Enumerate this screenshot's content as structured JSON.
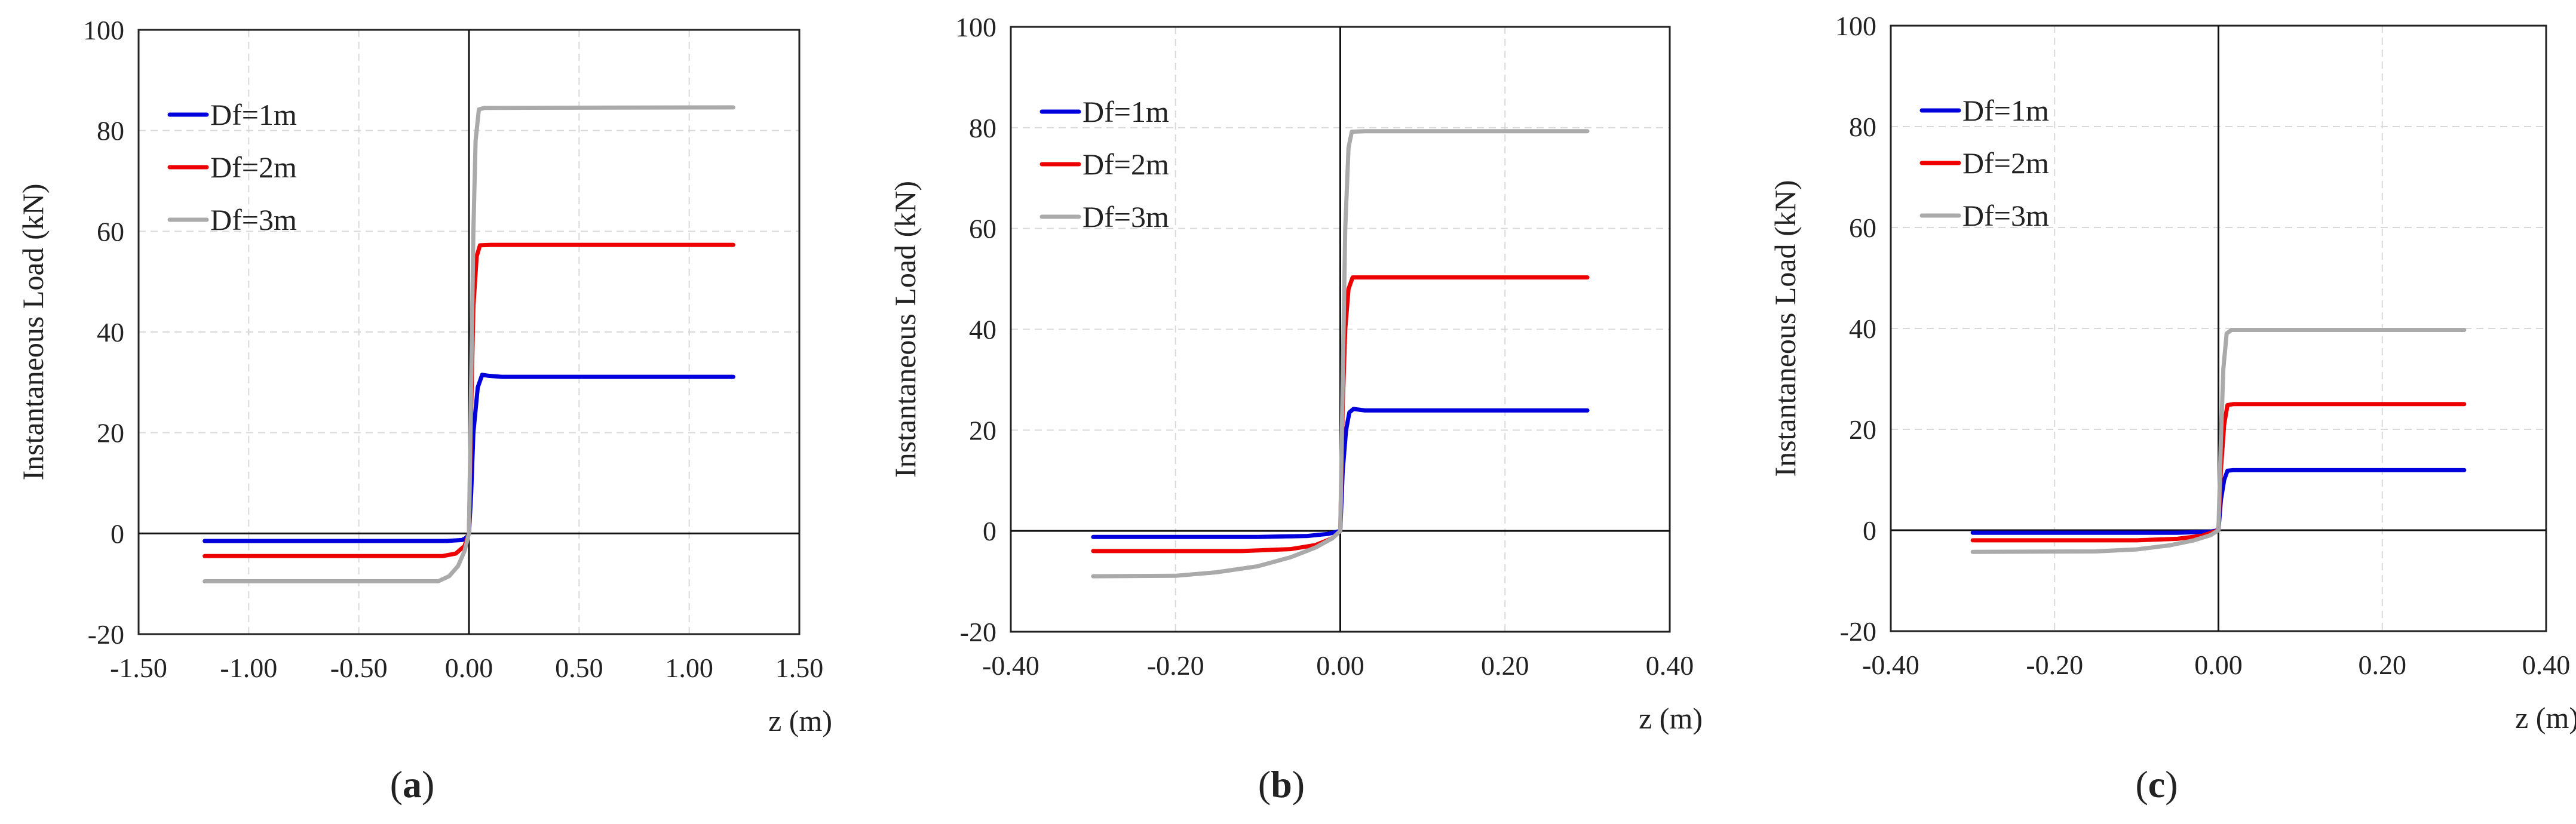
{
  "chart_data": [
    {
      "type": "line",
      "panel_label": "a",
      "xlabel": "z (m)",
      "ylabel": "Instantaneous Load (kN)",
      "xlim": [
        -1.5,
        1.5
      ],
      "ylim": [
        -20,
        100
      ],
      "xticks": [
        -1.5,
        -1.0,
        -0.5,
        0.0,
        0.5,
        1.0,
        1.5
      ],
      "xtick_labels": [
        "-1.50",
        "-1.00",
        "-0.50",
        "0.00",
        "0.50",
        "1.00",
        "1.50"
      ],
      "yticks": [
        -20,
        0,
        20,
        40,
        60,
        80,
        100
      ],
      "ytick_labels": [
        "-20",
        "0",
        "20",
        "40",
        "60",
        "80",
        "100"
      ],
      "grid": true,
      "legend_position": "top-left",
      "series": [
        {
          "name": "Df=1m",
          "color": "#0000dd",
          "points": [
            [
              -1.2,
              -1.5
            ],
            [
              -0.1,
              -1.5
            ],
            [
              -0.03,
              -1.3
            ],
            [
              -0.01,
              -0.8
            ],
            [
              0.0,
              0.0
            ],
            [
              0.01,
              8
            ],
            [
              0.02,
              20
            ],
            [
              0.04,
              29
            ],
            [
              0.06,
              31.5
            ],
            [
              0.09,
              31.3
            ],
            [
              0.15,
              31.1
            ],
            [
              1.2,
              31.1
            ]
          ]
        },
        {
          "name": "Df=2m",
          "color": "#ee0000",
          "points": [
            [
              -1.2,
              -4.5
            ],
            [
              -0.12,
              -4.5
            ],
            [
              -0.06,
              -4.0
            ],
            [
              -0.02,
              -2.5
            ],
            [
              0.0,
              0.0
            ],
            [
              0.01,
              25
            ],
            [
              0.02,
              45
            ],
            [
              0.035,
              55
            ],
            [
              0.05,
              57.2
            ],
            [
              0.1,
              57.3
            ],
            [
              1.2,
              57.3
            ]
          ]
        },
        {
          "name": "Df=3m",
          "color": "#aaaaaa",
          "points": [
            [
              -1.2,
              -9.5
            ],
            [
              -0.14,
              -9.5
            ],
            [
              -0.09,
              -8.5
            ],
            [
              -0.05,
              -6.5
            ],
            [
              -0.02,
              -3.5
            ],
            [
              0.0,
              0.0
            ],
            [
              0.01,
              30
            ],
            [
              0.02,
              60
            ],
            [
              0.03,
              78
            ],
            [
              0.045,
              84.2
            ],
            [
              0.07,
              84.5
            ],
            [
              1.2,
              84.6
            ]
          ]
        }
      ]
    },
    {
      "type": "line",
      "panel_label": "b",
      "xlabel": "z (m)",
      "ylabel": "Instantaneous Load (kN)",
      "xlim": [
        -0.4,
        0.4
      ],
      "ylim": [
        -20,
        100
      ],
      "xticks": [
        -0.4,
        -0.2,
        0.0,
        0.2,
        0.4
      ],
      "xtick_labels": [
        "-0.40",
        "-0.20",
        "0.00",
        "0.20",
        "0.40"
      ],
      "yticks": [
        -20,
        0,
        20,
        40,
        60,
        80,
        100
      ],
      "ytick_labels": [
        "-20",
        "0",
        "20",
        "40",
        "60",
        "80",
        "100"
      ],
      "grid": true,
      "legend_position": "top-left",
      "series": [
        {
          "name": "Df=1m",
          "color": "#0000dd",
          "points": [
            [
              -0.3,
              -1.2
            ],
            [
              -0.1,
              -1.2
            ],
            [
              -0.04,
              -1.0
            ],
            [
              -0.015,
              -0.6
            ],
            [
              0.0,
              0.0
            ],
            [
              0.003,
              12
            ],
            [
              0.007,
              20
            ],
            [
              0.011,
              23.5
            ],
            [
              0.016,
              24.2
            ],
            [
              0.03,
              23.9
            ],
            [
              0.3,
              23.9
            ]
          ]
        },
        {
          "name": "Df=2m",
          "color": "#ee0000",
          "points": [
            [
              -0.3,
              -4.0
            ],
            [
              -0.12,
              -4.0
            ],
            [
              -0.06,
              -3.6
            ],
            [
              -0.03,
              -2.8
            ],
            [
              -0.01,
              -1.5
            ],
            [
              0.0,
              0.0
            ],
            [
              0.003,
              25
            ],
            [
              0.006,
              40
            ],
            [
              0.01,
              48
            ],
            [
              0.015,
              50.3
            ],
            [
              0.03,
              50.3
            ],
            [
              0.3,
              50.3
            ]
          ]
        },
        {
          "name": "Df=3m",
          "color": "#aaaaaa",
          "points": [
            [
              -0.3,
              -9.0
            ],
            [
              -0.2,
              -8.9
            ],
            [
              -0.15,
              -8.2
            ],
            [
              -0.1,
              -7.0
            ],
            [
              -0.06,
              -5.2
            ],
            [
              -0.03,
              -3.3
            ],
            [
              -0.01,
              -1.5
            ],
            [
              0.0,
              0.0
            ],
            [
              0.003,
              30
            ],
            [
              0.006,
              60
            ],
            [
              0.01,
              76
            ],
            [
              0.014,
              79.2
            ],
            [
              0.03,
              79.3
            ],
            [
              0.3,
              79.3
            ]
          ]
        }
      ]
    },
    {
      "type": "line",
      "panel_label": "c",
      "xlabel": "z (m)",
      "ylabel": "Instantaneous Load (kN)",
      "xlim": [
        -0.4,
        0.4
      ],
      "ylim": [
        -20,
        100
      ],
      "xticks": [
        -0.4,
        -0.2,
        0.0,
        0.2,
        0.4
      ],
      "xtick_labels": [
        "-0.40",
        "-0.20",
        "0.00",
        "0.20",
        "0.40"
      ],
      "yticks": [
        -20,
        0,
        20,
        40,
        60,
        80,
        100
      ],
      "ytick_labels": [
        "-20",
        "0",
        "20",
        "40",
        "60",
        "80",
        "100"
      ],
      "grid": true,
      "legend_position": "top-left",
      "series": [
        {
          "name": "Df=1m",
          "color": "#0000dd",
          "points": [
            [
              -0.3,
              -0.5
            ],
            [
              -0.05,
              -0.5
            ],
            [
              -0.01,
              -0.3
            ],
            [
              0.0,
              0.0
            ],
            [
              0.003,
              6
            ],
            [
              0.007,
              10
            ],
            [
              0.011,
              11.8
            ],
            [
              0.018,
              11.9
            ],
            [
              0.3,
              11.9
            ]
          ]
        },
        {
          "name": "Df=2m",
          "color": "#ee0000",
          "points": [
            [
              -0.3,
              -2.0
            ],
            [
              -0.1,
              -2.0
            ],
            [
              -0.05,
              -1.7
            ],
            [
              -0.02,
              -1.1
            ],
            [
              0.0,
              0.0
            ],
            [
              0.003,
              12
            ],
            [
              0.007,
              21
            ],
            [
              0.011,
              24.8
            ],
            [
              0.018,
              25.0
            ],
            [
              0.3,
              25.0
            ]
          ]
        },
        {
          "name": "Df=3m",
          "color": "#aaaaaa",
          "points": [
            [
              -0.3,
              -4.3
            ],
            [
              -0.15,
              -4.2
            ],
            [
              -0.1,
              -3.8
            ],
            [
              -0.06,
              -3.0
            ],
            [
              -0.03,
              -2.0
            ],
            [
              -0.01,
              -1.0
            ],
            [
              0.0,
              0.0
            ],
            [
              0.003,
              18
            ],
            [
              0.006,
              32
            ],
            [
              0.01,
              39
            ],
            [
              0.016,
              39.7
            ],
            [
              0.3,
              39.7
            ]
          ]
        }
      ]
    }
  ]
}
